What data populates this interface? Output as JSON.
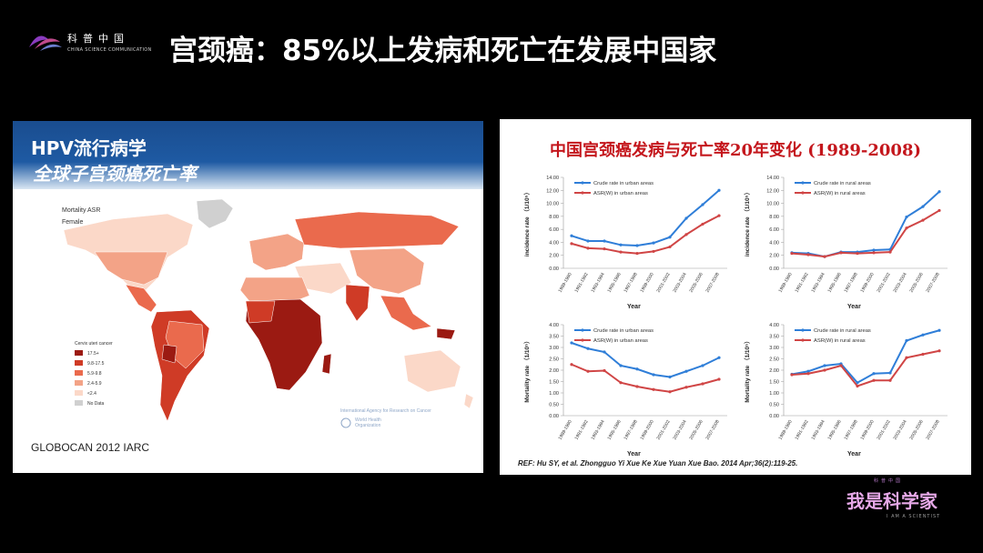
{
  "header": {
    "logo_cn": "科普中国",
    "logo_en": "CHINA SCIENCE COMMUNICATION",
    "title": "宫颈癌：85%以上发病和死亡在发展中国家"
  },
  "left_panel": {
    "title_line1": "HPV流行病学",
    "title_line2": "全球子宫颈癌死亡率",
    "map_title": "Mortality ASR",
    "map_subtitle": "Female",
    "legend_title": "Cervix uteri cancer",
    "legend": [
      {
        "label": "17.5+",
        "color": "#9b1a12"
      },
      {
        "label": "9.8-17.5",
        "color": "#cf3b26"
      },
      {
        "label": "5.9-9.8",
        "color": "#ea6a4d"
      },
      {
        "label": "2.4-5.9",
        "color": "#f3a387"
      },
      {
        "label": "<2.4",
        "color": "#fbd8c8"
      },
      {
        "label": "No Data",
        "color": "#d0d0d0"
      }
    ],
    "iarc_text": "International Agency for Research on Cancer",
    "who_text": "World Health Organization",
    "footer": "GLOBOCAN 2012  IARC"
  },
  "right_panel": {
    "title": "中国宫颈癌发病与死亡率20年变化 (1989-2008)",
    "reference": "REF: Hu SY, et al.  Zhongguo Yi Xue Ke Xue Yuan Xue Bao. 2014 Apr;36(2):119-25."
  },
  "colors": {
    "crude": "#2f7ed8",
    "asr": "#d04545"
  },
  "chart_data": [
    {
      "type": "line",
      "categories": [
        "1989-1990",
        "1991-1992",
        "1993-1994",
        "1995-1996",
        "1997-1998",
        "1999-2000",
        "2001-2002",
        "2003-2004",
        "2005-2006",
        "2007-2008"
      ],
      "ylabel": "incidence rate （1/10⁵）",
      "xlabel": "Year",
      "ylim": [
        0,
        14
      ],
      "yticks": [
        "0.00",
        "2.00",
        "4.00",
        "6.00",
        "8.00",
        "10.00",
        "12.00",
        "14.00"
      ],
      "series": [
        {
          "name": "Crude rate in urban areas",
          "values": [
            5.0,
            4.2,
            4.2,
            3.6,
            3.5,
            3.9,
            4.8,
            7.7,
            9.8,
            12.0
          ]
        },
        {
          "name": "ASR(W) in urban areas",
          "values": [
            3.8,
            3.1,
            3.0,
            2.5,
            2.3,
            2.6,
            3.3,
            5.2,
            6.8,
            8.1
          ]
        }
      ]
    },
    {
      "type": "line",
      "categories": [
        "1989-1990",
        "1991-1992",
        "1993-1994",
        "1995-1996",
        "1997-1998",
        "1999-2000",
        "2001-2002",
        "2003-2004",
        "2005-2006",
        "2007-2008"
      ],
      "ylabel": "incidence rate （1/10⁵）",
      "xlabel": "Year",
      "ylim": [
        0,
        14
      ],
      "yticks": [
        "0.00",
        "2.00",
        "4.00",
        "6.00",
        "8.00",
        "10.00",
        "12.00",
        "14.00"
      ],
      "series": [
        {
          "name": "Crude rate in rural areas",
          "values": [
            2.4,
            2.3,
            1.8,
            2.5,
            2.5,
            2.8,
            2.9,
            7.9,
            9.5,
            11.8
          ]
        },
        {
          "name": "ASR(W) in rural areas",
          "values": [
            2.3,
            2.1,
            1.8,
            2.4,
            2.3,
            2.4,
            2.5,
            6.2,
            7.4,
            8.9
          ]
        }
      ]
    },
    {
      "type": "line",
      "categories": [
        "1989-1990",
        "1991-1992",
        "1993-1994",
        "1995-1996",
        "1997-1998",
        "1999-2000",
        "2001-2002",
        "2003-2004",
        "2005-2006",
        "2007-2008"
      ],
      "ylabel": "Mortality rate （1/10⁵）",
      "xlabel": "Year",
      "ylim": [
        0,
        4
      ],
      "yticks": [
        "0.00",
        "0.50",
        "1.00",
        "1.50",
        "2.00",
        "2.50",
        "3.00",
        "3.50",
        "4.00"
      ],
      "series": [
        {
          "name": "Crude rate in urban areas",
          "values": [
            3.2,
            2.95,
            2.8,
            2.2,
            2.05,
            1.8,
            1.7,
            1.95,
            2.2,
            2.55
          ]
        },
        {
          "name": "ASR(W) in urban areas",
          "values": [
            2.25,
            1.95,
            1.98,
            1.45,
            1.28,
            1.15,
            1.05,
            1.25,
            1.4,
            1.6
          ]
        }
      ]
    },
    {
      "type": "line",
      "categories": [
        "1989-1990",
        "1991-1992",
        "1993-1994",
        "1995-1996",
        "1997-1998",
        "1999-2000",
        "2001-2002",
        "2003-2004",
        "2005-2006",
        "2007-2008"
      ],
      "ylabel": "Mortality rate （1/10⁵）",
      "xlabel": "Year",
      "ylim": [
        0,
        4
      ],
      "yticks": [
        "0.00",
        "0.50",
        "1.00",
        "1.50",
        "2.00",
        "2.50",
        "3.00",
        "3.50",
        "4.00"
      ],
      "series": [
        {
          "name": "Crude rate in rural areas",
          "values": [
            1.82,
            1.95,
            2.2,
            2.28,
            1.45,
            1.85,
            1.88,
            3.3,
            3.55,
            3.75
          ]
        },
        {
          "name": "ASR(W) in rural areas",
          "values": [
            1.8,
            1.85,
            2.0,
            2.2,
            1.3,
            1.55,
            1.55,
            2.55,
            2.7,
            2.85
          ]
        }
      ]
    }
  ],
  "brand": {
    "small": "科普中国",
    "main": "我是科学家",
    "sub": "I AM A SCIENTIST"
  }
}
